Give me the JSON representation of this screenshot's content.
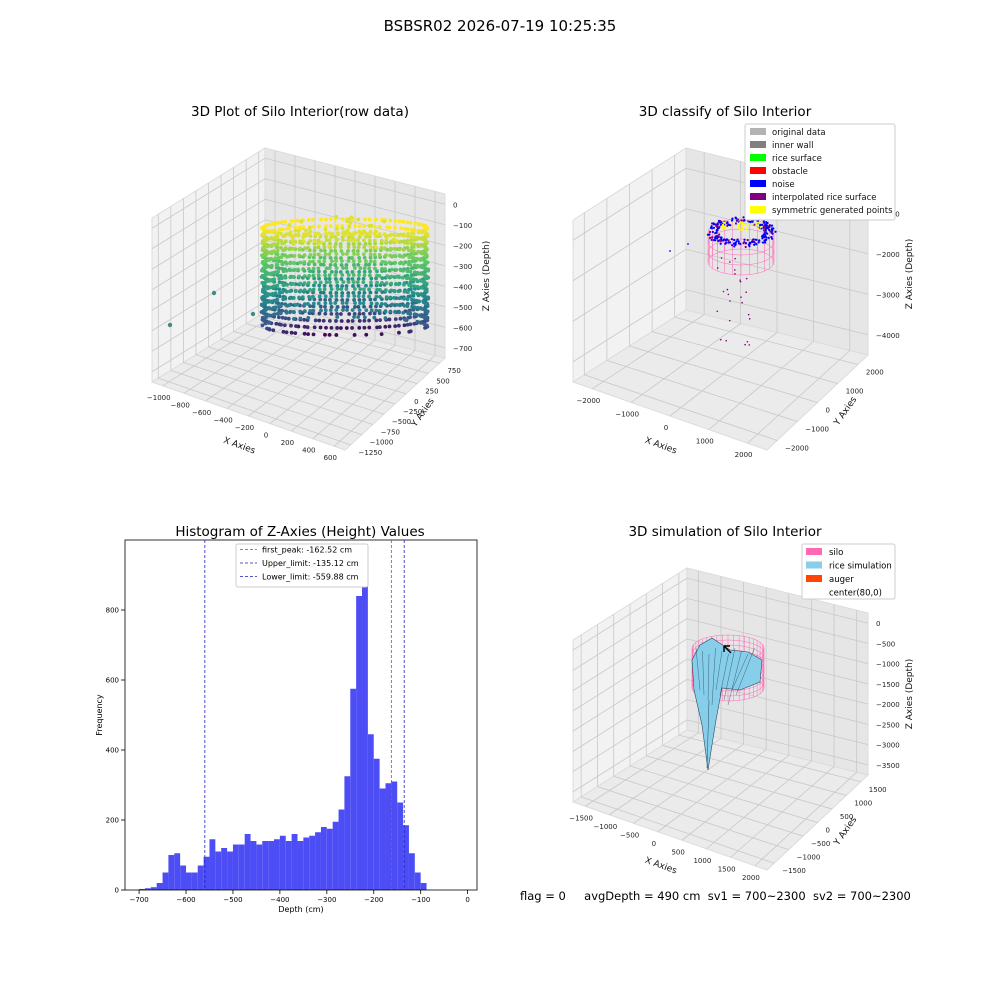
{
  "suptitle": "BSBSR02 2026-07-19 10:25:35",
  "footer": {
    "flag": "flag = 0",
    "avg": "avgDepth = 490 cm",
    "sv1": "sv1 = 700~2300",
    "sv2": "sv2 = 700~2300"
  },
  "colors": {
    "hist_bar": "#4d4df5",
    "peak_line": "#e03030",
    "limit_line": "#1f1fbf",
    "silo": "#ff69b4",
    "rice": "#87ceeb",
    "auger": "#ff4500",
    "viridis_low": "#440154",
    "viridis_mid": "#21918c",
    "viridis_high": "#fde725"
  },
  "chart_data": [
    {
      "type": "scatter",
      "title": "3D Plot of Silo Interior(row data)",
      "xlabel": "X Axies",
      "ylabel": "Y Axies",
      "zlabel": "Z Axies (Depth)",
      "x_ticks": [
        "−1000",
        "−800",
        "−600",
        "−400",
        "−200",
        "0",
        "200",
        "400",
        "600"
      ],
      "y_ticks": [
        "−1250",
        "−1000",
        "−750",
        "−500",
        "−250",
        "0",
        "250",
        "500",
        "750"
      ],
      "z_ticks": [
        "−700",
        "−600",
        "−500",
        "−400",
        "−300",
        "−200",
        "−100",
        "0"
      ],
      "colormap": "viridis",
      "description_points": "cylindrical wall point cloud, depth ~ -700 to 0"
    },
    {
      "type": "scatter",
      "title": "3D classify of Silo Interior",
      "xlabel": "X Axies",
      "ylabel": "Y Axies",
      "zlabel": "Z Axies (Depth)",
      "x_ticks": [
        "−2000",
        "−1000",
        "0",
        "1000",
        "2000"
      ],
      "y_ticks": [
        "−2000",
        "−1000",
        "0",
        "1000",
        "2000"
      ],
      "z_ticks": [
        "−4000",
        "−3000",
        "−2000",
        "−1000"
      ],
      "legend": [
        {
          "label": "original data",
          "color": "#b3b3b3"
        },
        {
          "label": "inner wall",
          "color": "#808080"
        },
        {
          "label": "rice surface",
          "color": "#00ff00"
        },
        {
          "label": "obstacle",
          "color": "#ff0000"
        },
        {
          "label": "noise",
          "color": "#0000ff"
        },
        {
          "label": "interpolated rice surface",
          "color": "#800080"
        },
        {
          "label": "symmetric generated points",
          "color": "#ffff00"
        }
      ]
    },
    {
      "type": "bar",
      "title": "Histogram of Z-Axies (Height) Values",
      "xlabel": "Depth (cm)",
      "ylabel": "Frequency",
      "xlim": [
        -730,
        20
      ],
      "ylim": [
        0,
        1000
      ],
      "x_ticks": [
        -700,
        -600,
        -500,
        -400,
        -300,
        -200,
        -100,
        0
      ],
      "y_ticks": [
        0,
        200,
        400,
        600,
        800
      ],
      "bin_width": 12.5,
      "bin_start": -700,
      "values": [
        3,
        5,
        8,
        20,
        50,
        100,
        105,
        70,
        50,
        50,
        70,
        95,
        145,
        110,
        120,
        110,
        130,
        130,
        160,
        140,
        130,
        140,
        140,
        145,
        155,
        140,
        160,
        140,
        150,
        155,
        165,
        180,
        175,
        195,
        230,
        325,
        575,
        840,
        950,
        445,
        375,
        290,
        305,
        310,
        250,
        185,
        105,
        50,
        20
      ],
      "vlines": [
        {
          "label": "first_peak: -162.52 cm",
          "x": -162.52,
          "style": "peak"
        },
        {
          "label": "Upper_limit: -135.12 cm",
          "x": -135.12,
          "style": "limit"
        },
        {
          "label": "Lower_limit: -559.88 cm",
          "x": -559.88,
          "style": "limit"
        }
      ]
    },
    {
      "type": "surface",
      "title": "3D simulation of Silo Interior",
      "xlabel": "X Axies",
      "ylabel": "Y Axies",
      "zlabel": "Z Axies (Depth)",
      "x_ticks": [
        "−1500",
        "−1000",
        "−500",
        "0",
        "500",
        "1000",
        "1500",
        "2000"
      ],
      "y_ticks": [
        "−1500",
        "−1000",
        "−500",
        "0",
        "500",
        "1000",
        "1500"
      ],
      "z_ticks": [
        "−3500",
        "−3000",
        "−2500",
        "−2000",
        "−1500",
        "−1000",
        "−500",
        "0"
      ],
      "legend": [
        {
          "label": "silo",
          "color": "#ff69b4"
        },
        {
          "label": "rice simulation",
          "color": "#87ceeb"
        },
        {
          "label": "auger",
          "color": "#ff4500"
        },
        {
          "label": "center(80,0)",
          "color": "none"
        }
      ]
    }
  ]
}
